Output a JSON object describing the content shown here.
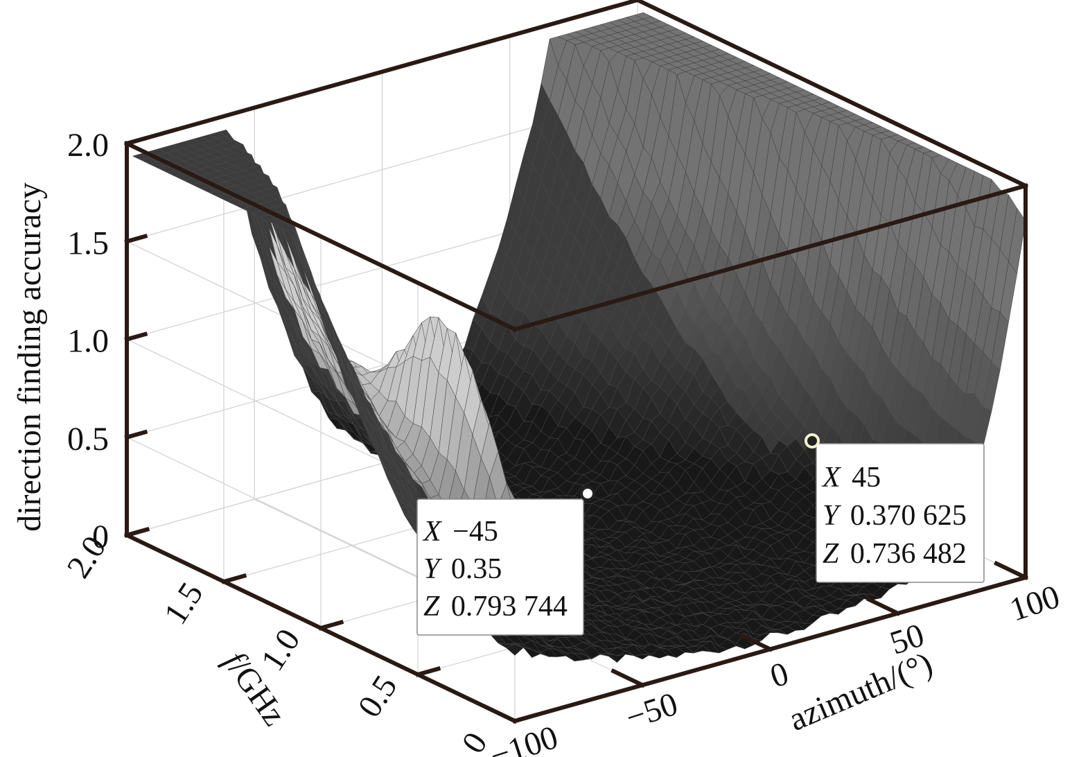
{
  "chart_data": {
    "type": "surface3d",
    "title": "",
    "xlabel": "azimuth/(°)",
    "ylabel_italic": "f",
    "ylabel_rest": "/GHz",
    "zlabel": "direction finding accuracy",
    "xlim": [
      -100,
      100
    ],
    "ylim": [
      0,
      2.0
    ],
    "zlim": [
      0,
      2.0
    ],
    "grid": true,
    "x_ticks": [
      "−100",
      "−50",
      "0",
      "50",
      "100"
    ],
    "y_ticks": [
      "0",
      "0.5",
      "1.0",
      "1.5",
      "2.0"
    ],
    "z_ticks": [
      "0",
      "0.5",
      "1.0",
      "1.5",
      "2.0"
    ],
    "x_tick_values": [
      -100,
      -50,
      0,
      50,
      100
    ],
    "y_tick_values": [
      0,
      0.5,
      1.0,
      1.5,
      2.0
    ],
    "z_tick_values": [
      0,
      0.5,
      1.0,
      1.5,
      2.0
    ],
    "surface_colors": {
      "dark": "#111111",
      "light": "#b8b8b8",
      "mesh": "#555555"
    },
    "datatips": [
      {
        "x": -45,
        "y": 0.35,
        "z": 0.793744,
        "x_label": "X",
        "x_text": "−45",
        "y_label": "Y",
        "y_text": "0.35",
        "z_label": "Z",
        "z_text": "0.793 744"
      },
      {
        "x": 45,
        "y": 0.370625,
        "z": 0.736482,
        "x_label": "X",
        "x_text": "45",
        "y_label": "Y",
        "y_text": "0.370 625",
        "z_label": "Z",
        "z_text": "0.736 482"
      }
    ]
  }
}
